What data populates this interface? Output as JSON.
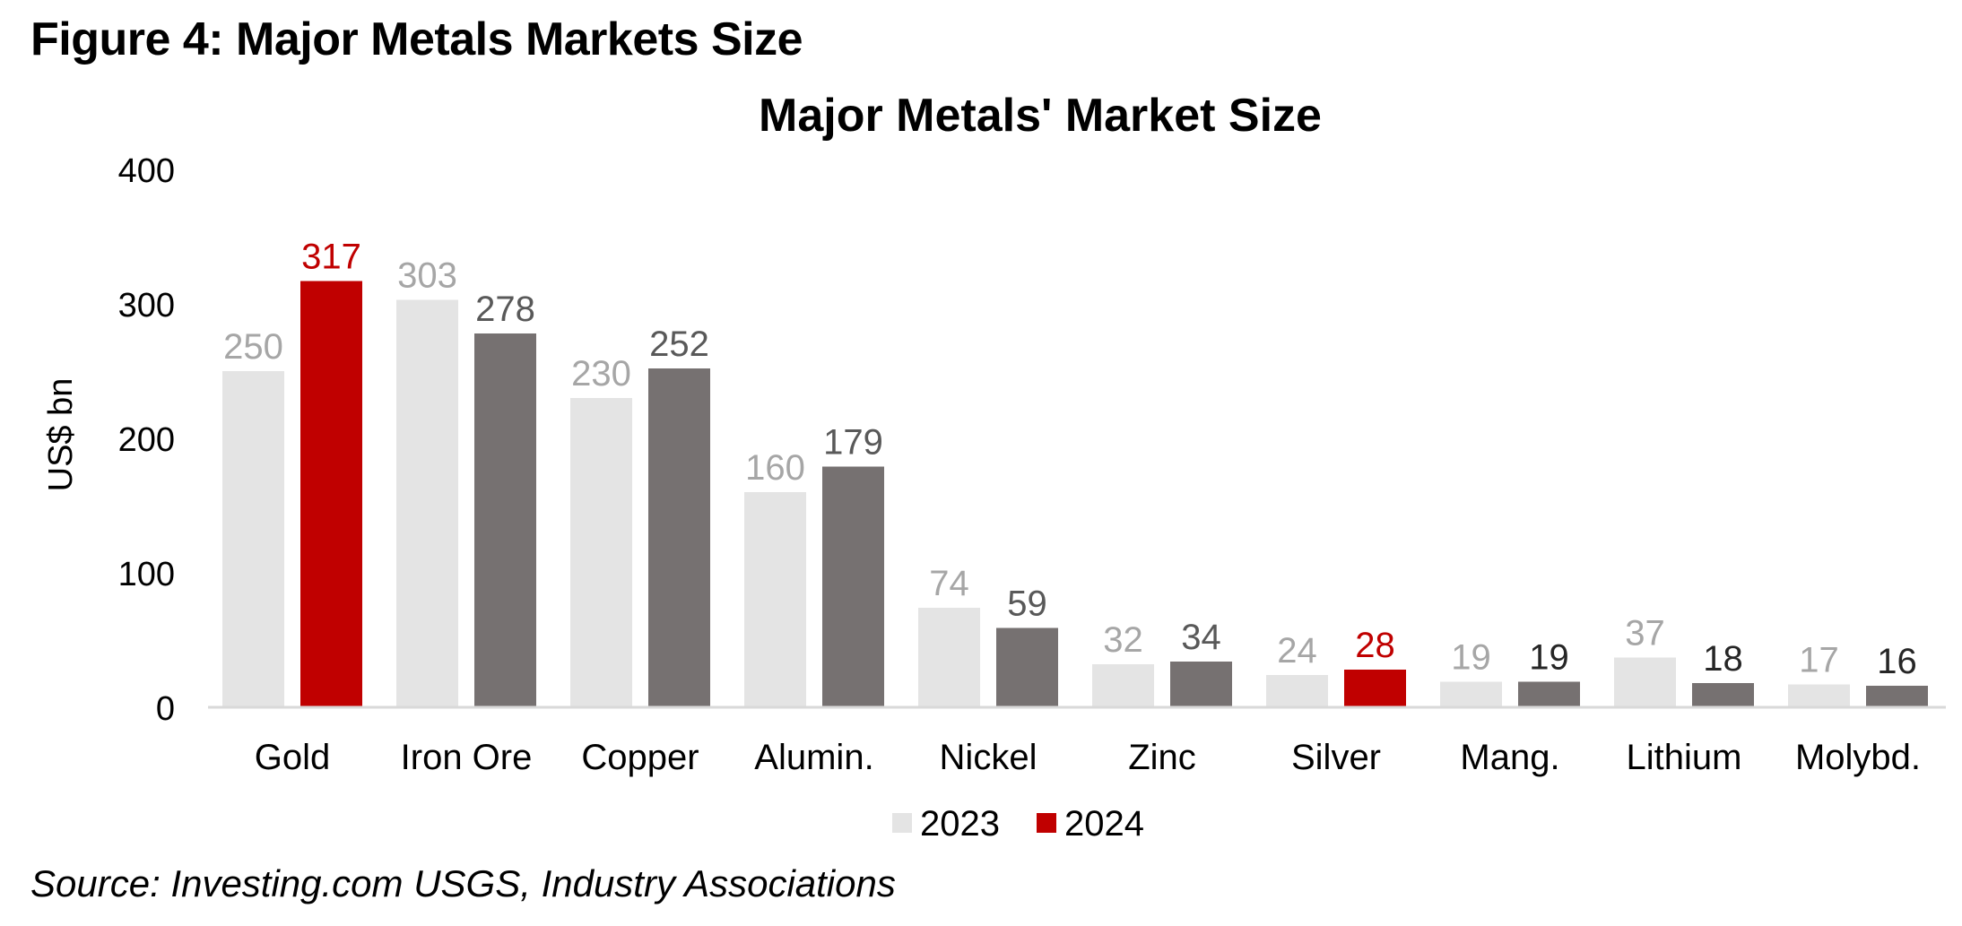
{
  "figure": {
    "title": "Figure 4: Major Metals Markets Size",
    "source": "Source: Investing.com USGS, Industry Associations"
  },
  "colors": {
    "series_2023": "#e4e4e4",
    "series_2024_gray": "#767171",
    "highlight_red": "#c00000",
    "label_2023": "#a6a6a6",
    "label_2024_mid": "#595959",
    "label_2024_dark": "#262626",
    "axis_line": "#d9d9d9",
    "text": "#000000"
  },
  "chart_data": {
    "type": "bar",
    "title": "Major Metals' Market Size",
    "xlabel": "",
    "ylabel": "US$ bn",
    "ylim": [
      0,
      400
    ],
    "yticks": [
      0,
      100,
      200,
      300,
      400
    ],
    "grid": false,
    "legend_position": "bottom",
    "categories": [
      "Gold",
      "Iron Ore",
      "Copper",
      "Alumin.",
      "Nickel",
      "Zinc",
      "Silver",
      "Mang.",
      "Lithium",
      "Molybd."
    ],
    "series": [
      {
        "name": "2023",
        "values": [
          250,
          303,
          230,
          160,
          74,
          32,
          24,
          19,
          37,
          17
        ],
        "color": "#e4e4e4"
      },
      {
        "name": "2024",
        "values": [
          317,
          278,
          252,
          179,
          59,
          34,
          28,
          19,
          18,
          16
        ],
        "color": "#767171",
        "highlighted_categories": [
          "Gold",
          "Silver"
        ],
        "highlight_color": "#c00000"
      }
    ],
    "legend": [
      {
        "label": "2023",
        "color": "#e4e4e4"
      },
      {
        "label": "2024",
        "color": "#c00000"
      }
    ]
  }
}
